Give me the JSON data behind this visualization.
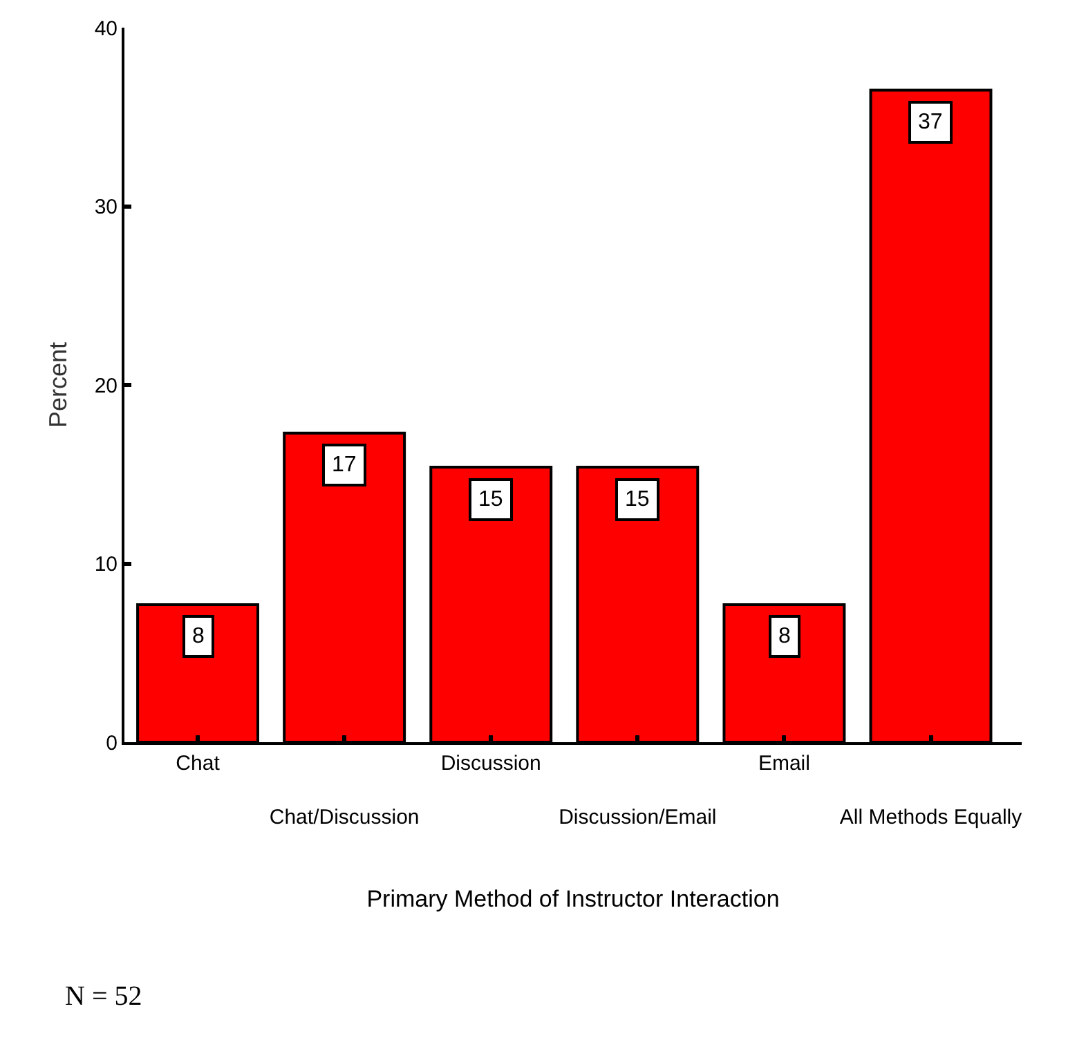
{
  "chart_data": {
    "type": "bar",
    "xlabel": "Primary Method of Instructor Interaction",
    "ylabel": "Percent",
    "categories": [
      "Chat",
      "Chat/Discussion",
      "Discussion",
      "Discussion/Email",
      "Email",
      "All Methods Equally"
    ],
    "values": [
      7.7,
      17.3,
      15.4,
      15.4,
      7.7,
      36.5
    ],
    "value_labels": [
      "8",
      "17",
      "15",
      "15",
      "8",
      "37"
    ],
    "color": "#ff0000",
    "ylim": [
      0,
      40
    ],
    "yticks": [
      0,
      10,
      20,
      30,
      40
    ],
    "annotations": [
      "N = 52"
    ]
  }
}
